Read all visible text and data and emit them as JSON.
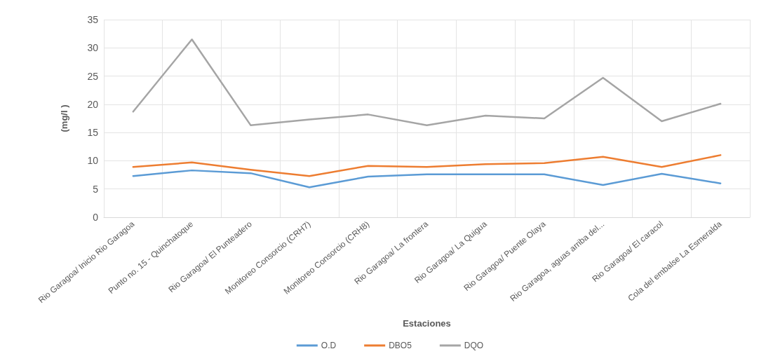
{
  "chart_data": {
    "type": "line",
    "xlabel": "Estaciones",
    "ylabel": "(mg/l )",
    "categories": [
      "Rio Garagoa/ Inicio Rio Garagoa",
      "Punto no. 15 - Quinchatoque",
      "Rio Garagoa/ El Punteadero",
      "Monitoreo Consorcio (CRH7)",
      "Monitoreo Consorcio (CRH8)",
      "Rio Garagoa/ La frontera",
      "Rio Garagoa/ La Quigua",
      "Rio Garagoa/ Puente Olaya",
      "Rio Garagoa, aguas arriba del...",
      "Rio Garagoa/ El caracol",
      "Cola del embalse La Esmeralda"
    ],
    "series": [
      {
        "name": "O.D",
        "color": "#5b9bd5",
        "values": [
          7.3,
          8.3,
          7.8,
          5.3,
          7.2,
          7.6,
          7.6,
          7.6,
          5.7,
          7.7,
          6.0
        ]
      },
      {
        "name": "DBO5",
        "color": "#ed7d31",
        "values": [
          8.9,
          9.7,
          8.4,
          7.3,
          9.1,
          8.9,
          9.4,
          9.6,
          10.7,
          8.9,
          11.0
        ]
      },
      {
        "name": "DQO",
        "color": "#a5a5a5",
        "values": [
          18.7,
          31.5,
          16.3,
          17.3,
          18.2,
          16.3,
          18.0,
          17.5,
          24.7,
          17.0,
          20.1
        ]
      }
    ],
    "ylim": [
      0,
      35
    ],
    "yticks": [
      0,
      5,
      10,
      15,
      20,
      25,
      30,
      35
    ],
    "grid": true,
    "legend": "bottom",
    "marker": "none",
    "line_style": "solid"
  }
}
